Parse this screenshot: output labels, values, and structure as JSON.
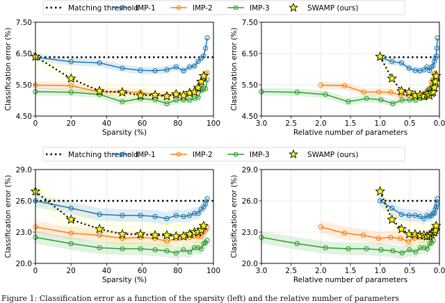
{
  "figure": {
    "legend": {
      "entries": [
        {
          "label": "Matching threshold",
          "style": "dotted",
          "color": "#000000"
        },
        {
          "label": "IMP-1",
          "style": "line-circle",
          "color": "#1f77b4"
        },
        {
          "label": "IMP-2",
          "style": "line-circle",
          "color": "#ff7f0e"
        },
        {
          "label": "IMP-3",
          "style": "line-circle",
          "color": "#2ca02c"
        },
        {
          "label": "SWAMP (ours)",
          "style": "star",
          "color": "#ffff00"
        }
      ]
    },
    "caption": "Figure 1: Classification error as a function of the sparsity (left) and the relative number of parameters"
  },
  "chart_data": [
    {
      "type": "line",
      "panel": "top-left",
      "title": "",
      "xlabel": "Sparsity (%)",
      "ylabel": "Classification error (%)",
      "xlim": [
        0,
        100
      ],
      "ylim": [
        4.5,
        7.5
      ],
      "xticks": [
        "0",
        "20",
        "40",
        "60",
        "80",
        "100"
      ],
      "xtick_values": [
        0,
        20,
        40,
        60,
        80,
        100
      ],
      "yticks": [
        "4.50",
        "5.50",
        "6.50",
        "7.50"
      ],
      "ytick_values": [
        4.5,
        5.5,
        6.5,
        7.5
      ],
      "grid": true,
      "xreversed": false,
      "threshold": 6.38,
      "series": [
        {
          "name": "IMP-1",
          "color": "#1f77b4",
          "x": [
            0,
            20,
            36,
            48.8,
            59,
            67.2,
            73.8,
            79,
            83.2,
            86.6,
            89.3,
            91.4,
            93.1,
            94.5,
            95.6,
            96.5
          ],
          "values": [
            6.38,
            6.24,
            6.2,
            6.03,
            5.96,
            5.95,
            5.98,
            6.07,
            5.95,
            6.07,
            6.1,
            6.25,
            6.35,
            6.42,
            6.67,
            7.0
          ]
        },
        {
          "name": "IMP-2",
          "color": "#ff7f0e",
          "x": [
            0,
            20,
            36,
            48.8,
            59,
            67.2,
            73.8,
            79,
            83.2,
            86.6,
            89.3,
            91.4,
            93.1,
            94.5,
            95.6,
            96.5
          ],
          "values": [
            5.49,
            5.47,
            5.27,
            5.27,
            5.26,
            5.17,
            5.17,
            5.17,
            5.17,
            5.22,
            5.25,
            5.38,
            5.58,
            5.66,
            5.85,
            5.88
          ]
        },
        {
          "name": "IMP-3",
          "color": "#2ca02c",
          "x": [
            0,
            20,
            36,
            48.8,
            59,
            67.2,
            73.8,
            79,
            83.2,
            86.6,
            89.3,
            91.4,
            93.1,
            94.5,
            95.6,
            96.5
          ],
          "values": [
            5.28,
            5.26,
            5.19,
            4.96,
            5.06,
            5.02,
            4.9,
            5.01,
            5.02,
            5.01,
            5.07,
            5.1,
            5.32,
            5.36,
            5.38,
            5.66
          ]
        },
        {
          "name": "SWAMP (ours)",
          "color": "#ffff00",
          "x": [
            0,
            20,
            36,
            48.8,
            59,
            67.2,
            73.8,
            79,
            83.2,
            86.6,
            89.3,
            91.4,
            93.1,
            94.5
          ],
          "values": [
            6.4,
            5.7,
            5.3,
            5.26,
            5.16,
            5.17,
            5.13,
            5.2,
            5.16,
            5.24,
            5.27,
            5.41,
            5.6,
            5.78
          ]
        }
      ]
    },
    {
      "type": "line",
      "panel": "top-right",
      "title": "",
      "xlabel": "Relative number of parameters",
      "ylabel": "Classification error (%)",
      "xlim": [
        3.0,
        0.0
      ],
      "ylim": [
        4.5,
        7.5
      ],
      "xticks": [
        "3.0",
        "2.5",
        "2.0",
        "1.5",
        "1.0",
        "0.5",
        "0.0"
      ],
      "xtick_values": [
        3.0,
        2.5,
        2.0,
        1.5,
        1.0,
        0.5,
        0.0
      ],
      "yticks": [
        "4.50",
        "5.50",
        "6.50",
        "7.50"
      ],
      "ytick_values": [
        4.5,
        5.5,
        6.5,
        7.5
      ],
      "grid": true,
      "xreversed": true,
      "threshold": 6.38,
      "threshold_x": [
        1.0,
        0.0
      ],
      "series": [
        {
          "name": "IMP-1",
          "color": "#1f77b4",
          "x": [
            1.0,
            0.8,
            0.64,
            0.512,
            0.41,
            0.328,
            0.262,
            0.21,
            0.168,
            0.134,
            0.107,
            0.086,
            0.069,
            0.055,
            0.044,
            0.035
          ],
          "values": [
            6.38,
            6.24,
            6.2,
            6.03,
            5.96,
            5.95,
            5.98,
            6.07,
            5.95,
            6.07,
            6.1,
            6.25,
            6.35,
            6.42,
            6.67,
            7.0
          ]
        },
        {
          "name": "IMP-2",
          "color": "#ff7f0e",
          "x": [
            2.0,
            1.6,
            1.28,
            1.024,
            0.82,
            0.656,
            0.524,
            0.42,
            0.336,
            0.268,
            0.214,
            0.172,
            0.138,
            0.11,
            0.088,
            0.07
          ],
          "values": [
            5.49,
            5.47,
            5.27,
            5.27,
            5.26,
            5.17,
            5.17,
            5.17,
            5.17,
            5.22,
            5.25,
            5.38,
            5.58,
            5.66,
            5.85,
            5.88
          ]
        },
        {
          "name": "IMP-3",
          "color": "#2ca02c",
          "x": [
            3.0,
            2.4,
            1.92,
            1.536,
            1.23,
            0.984,
            0.786,
            0.63,
            0.504,
            0.402,
            0.321,
            0.258,
            0.207,
            0.165,
            0.132,
            0.105
          ],
          "values": [
            5.28,
            5.26,
            5.19,
            4.96,
            5.06,
            5.02,
            4.9,
            5.01,
            5.02,
            5.01,
            5.07,
            5.1,
            5.32,
            5.36,
            5.38,
            5.66
          ]
        },
        {
          "name": "SWAMP (ours)",
          "color": "#ffff00",
          "x": [
            1.0,
            0.8,
            0.64,
            0.512,
            0.41,
            0.328,
            0.262,
            0.21,
            0.168,
            0.134,
            0.107,
            0.086,
            0.069,
            0.055
          ],
          "values": [
            6.4,
            5.7,
            5.3,
            5.26,
            5.16,
            5.17,
            5.13,
            5.2,
            5.16,
            5.24,
            5.27,
            5.41,
            5.6,
            5.78
          ]
        }
      ]
    },
    {
      "type": "line",
      "panel": "bottom-left",
      "title": "",
      "xlabel": "Sparsity (%)",
      "ylabel": "Classification error (%)",
      "xlim": [
        0,
        100
      ],
      "ylim": [
        20.0,
        29.0
      ],
      "xticks": [
        "0",
        "20",
        "40",
        "60",
        "80",
        "100"
      ],
      "xtick_values": [
        0,
        20,
        40,
        60,
        80,
        100
      ],
      "yticks": [
        "20.0",
        "23.0",
        "26.0",
        "29.0"
      ],
      "ytick_values": [
        20.0,
        23.0,
        26.0,
        29.0
      ],
      "grid": true,
      "xreversed": false,
      "threshold": 26.0,
      "series": [
        {
          "name": "IMP-1",
          "color": "#1f77b4",
          "x": [
            0,
            20,
            36,
            48.8,
            59,
            67.2,
            73.8,
            79,
            83.2,
            86.6,
            89.3,
            91.4,
            93.1,
            94.5,
            95.6,
            96.5
          ],
          "values": [
            26.0,
            25.3,
            24.7,
            24.6,
            24.6,
            24.5,
            24.3,
            24.6,
            24.5,
            24.6,
            24.8,
            24.8,
            25.2,
            25.4,
            25.7,
            26.2
          ]
        },
        {
          "name": "IMP-2",
          "color": "#ff7f0e",
          "x": [
            0,
            20,
            36,
            48.8,
            59,
            67.2,
            73.8,
            79,
            83.2,
            86.6,
            89.3,
            91.4,
            93.1,
            94.5,
            95.6,
            96.5
          ],
          "values": [
            23.5,
            22.9,
            22.7,
            22.4,
            22.5,
            22.4,
            22.1,
            22.4,
            22.5,
            22.5,
            22.6,
            22.6,
            22.6,
            23.0,
            23.2,
            23.4
          ]
        },
        {
          "name": "IMP-3",
          "color": "#2ca02c",
          "x": [
            0,
            20,
            36,
            48.8,
            59,
            67.2,
            73.8,
            79,
            83.2,
            86.6,
            89.3,
            91.4,
            93.1,
            94.5,
            95.6,
            96.5
          ],
          "values": [
            22.5,
            21.9,
            21.5,
            21.4,
            21.4,
            21.3,
            21.2,
            21.0,
            21.3,
            21.1,
            21.5,
            21.5,
            21.4,
            21.9,
            22.0,
            22.2
          ]
        },
        {
          "name": "SWAMP (ours)",
          "color": "#ffff00",
          "x": [
            0,
            20,
            36,
            48.8,
            59,
            67.2,
            73.8,
            79,
            83.2,
            86.6,
            89.3,
            91.4,
            93.1,
            94.5
          ],
          "values": [
            26.9,
            24.2,
            23.3,
            22.8,
            22.8,
            22.7,
            22.7,
            22.6,
            22.6,
            22.8,
            23.0,
            23.0,
            23.2,
            23.6
          ]
        }
      ]
    },
    {
      "type": "line",
      "panel": "bottom-right",
      "title": "",
      "xlabel": "Relative number of parameters",
      "ylabel": "Classification error (%)",
      "xlim": [
        3.0,
        0.0
      ],
      "ylim": [
        20.0,
        29.0
      ],
      "xticks": [
        "3.0",
        "2.5",
        "2.0",
        "1.5",
        "1.0",
        "0.5",
        "0.0"
      ],
      "xtick_values": [
        3.0,
        2.5,
        2.0,
        1.5,
        1.0,
        0.5,
        0.0
      ],
      "yticks": [
        "20.0",
        "23.0",
        "26.0",
        "29.0"
      ],
      "ytick_values": [
        20.0,
        23.0,
        26.0,
        29.0
      ],
      "grid": true,
      "xreversed": true,
      "threshold": 26.0,
      "threshold_x": [
        1.0,
        0.0
      ],
      "series": [
        {
          "name": "IMP-1",
          "color": "#1f77b4",
          "x": [
            1.0,
            0.8,
            0.64,
            0.512,
            0.41,
            0.328,
            0.262,
            0.21,
            0.168,
            0.134,
            0.107,
            0.086,
            0.069,
            0.055,
            0.044,
            0.035
          ],
          "values": [
            26.0,
            25.3,
            24.7,
            24.6,
            24.6,
            24.5,
            24.3,
            24.6,
            24.5,
            24.6,
            24.8,
            24.8,
            25.2,
            25.4,
            25.7,
            26.2
          ]
        },
        {
          "name": "IMP-2",
          "color": "#ff7f0e",
          "x": [
            2.0,
            1.6,
            1.28,
            1.024,
            0.82,
            0.656,
            0.524,
            0.42,
            0.336,
            0.268,
            0.214,
            0.172,
            0.138,
            0.11,
            0.088,
            0.07
          ],
          "values": [
            23.5,
            22.9,
            22.7,
            22.4,
            22.5,
            22.4,
            22.1,
            22.4,
            22.5,
            22.5,
            22.6,
            22.6,
            22.6,
            23.0,
            23.2,
            23.4
          ]
        },
        {
          "name": "IMP-3",
          "color": "#2ca02c",
          "x": [
            3.0,
            2.4,
            1.92,
            1.536,
            1.23,
            0.984,
            0.786,
            0.63,
            0.504,
            0.402,
            0.321,
            0.258,
            0.207,
            0.165,
            0.132,
            0.105
          ],
          "values": [
            22.5,
            21.9,
            21.5,
            21.4,
            21.4,
            21.3,
            21.2,
            21.0,
            21.3,
            21.1,
            21.5,
            21.5,
            21.4,
            21.9,
            22.0,
            22.2
          ]
        },
        {
          "name": "SWAMP (ours)",
          "color": "#ffff00",
          "x": [
            1.0,
            0.8,
            0.64,
            0.512,
            0.41,
            0.328,
            0.262,
            0.21,
            0.168,
            0.134,
            0.107,
            0.086,
            0.069,
            0.055
          ],
          "values": [
            26.9,
            24.2,
            23.3,
            22.8,
            22.8,
            22.7,
            22.7,
            22.6,
            22.6,
            22.8,
            23.0,
            23.0,
            23.2,
            23.6
          ]
        }
      ]
    }
  ]
}
